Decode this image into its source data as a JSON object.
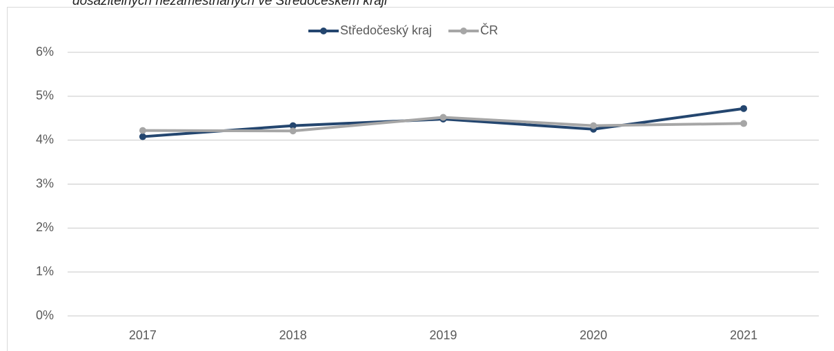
{
  "chart_data": {
    "type": "line",
    "title": "dosažitelných nezaměstnaných ve Středočeském kraji",
    "categories": [
      "2017",
      "2018",
      "2019",
      "2020",
      "2021"
    ],
    "series": [
      {
        "name": "Středočeský kraj",
        "color": "#24466f",
        "values": [
          4.08,
          4.33,
          4.48,
          4.25,
          4.72
        ]
      },
      {
        "name": "ČR",
        "color": "#a6a6a6",
        "values": [
          4.22,
          4.21,
          4.52,
          4.33,
          4.38
        ]
      }
    ],
    "ylim": [
      0,
      6
    ],
    "yticks": [
      {
        "value": 0,
        "label": "0%"
      },
      {
        "value": 1,
        "label": "1%"
      },
      {
        "value": 2,
        "label": "2%"
      },
      {
        "value": 3,
        "label": "3%"
      },
      {
        "value": 4,
        "label": "4%"
      },
      {
        "value": 5,
        "label": "5%"
      },
      {
        "value": 6,
        "label": "6%"
      }
    ],
    "grid": true,
    "legend": "top"
  }
}
